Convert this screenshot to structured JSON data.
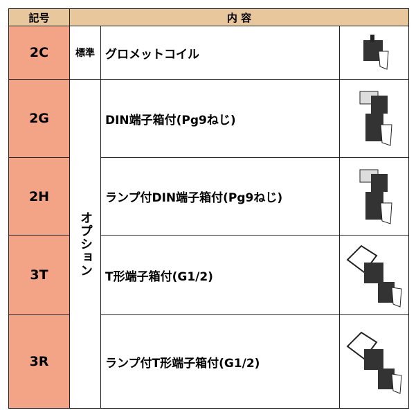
{
  "table": {
    "header": [
      "記号",
      "内 容"
    ],
    "rows": [
      {
        "code": "2C",
        "category": "標準",
        "description": "グロメットコイル"
      },
      {
        "code": "2G",
        "description": "DIN端子箱付(Pg9ねじ)"
      },
      {
        "code": "2H",
        "description": "ランプ付DIN端子箱付(Pg9ねじ)"
      },
      {
        "code": "3T",
        "description": "T形端子箱付(G1/2)"
      },
      {
        "code": "3R",
        "description": "ランプ付T形端子箱付(G1/2)"
      }
    ],
    "option_label": "オプション"
  }
}
